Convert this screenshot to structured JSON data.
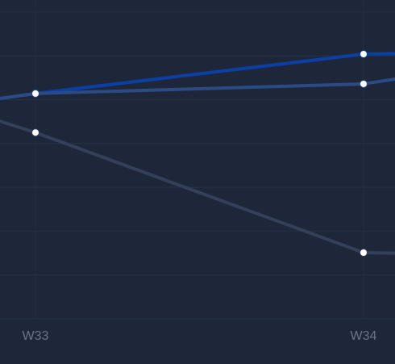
{
  "chart_data": {
    "type": "line",
    "categories": [
      null,
      "W33",
      "W34",
      null
    ],
    "series": [
      {
        "color": "#0b3fa3",
        "values": [
          4.1,
          5.14,
          6.04,
          6.17
        ]
      },
      {
        "color": "#2c4b85",
        "values": [
          4.1,
          5.14,
          5.36,
          6.5
        ]
      },
      {
        "color": "#343f58",
        "values": [
          6.65,
          4.25,
          1.51,
          1.4
        ]
      }
    ],
    "ylim": [
      0,
      7.3
    ],
    "yticks": [
      0,
      1,
      2,
      3,
      4,
      5,
      6,
      7
    ],
    "grid": true
  }
}
